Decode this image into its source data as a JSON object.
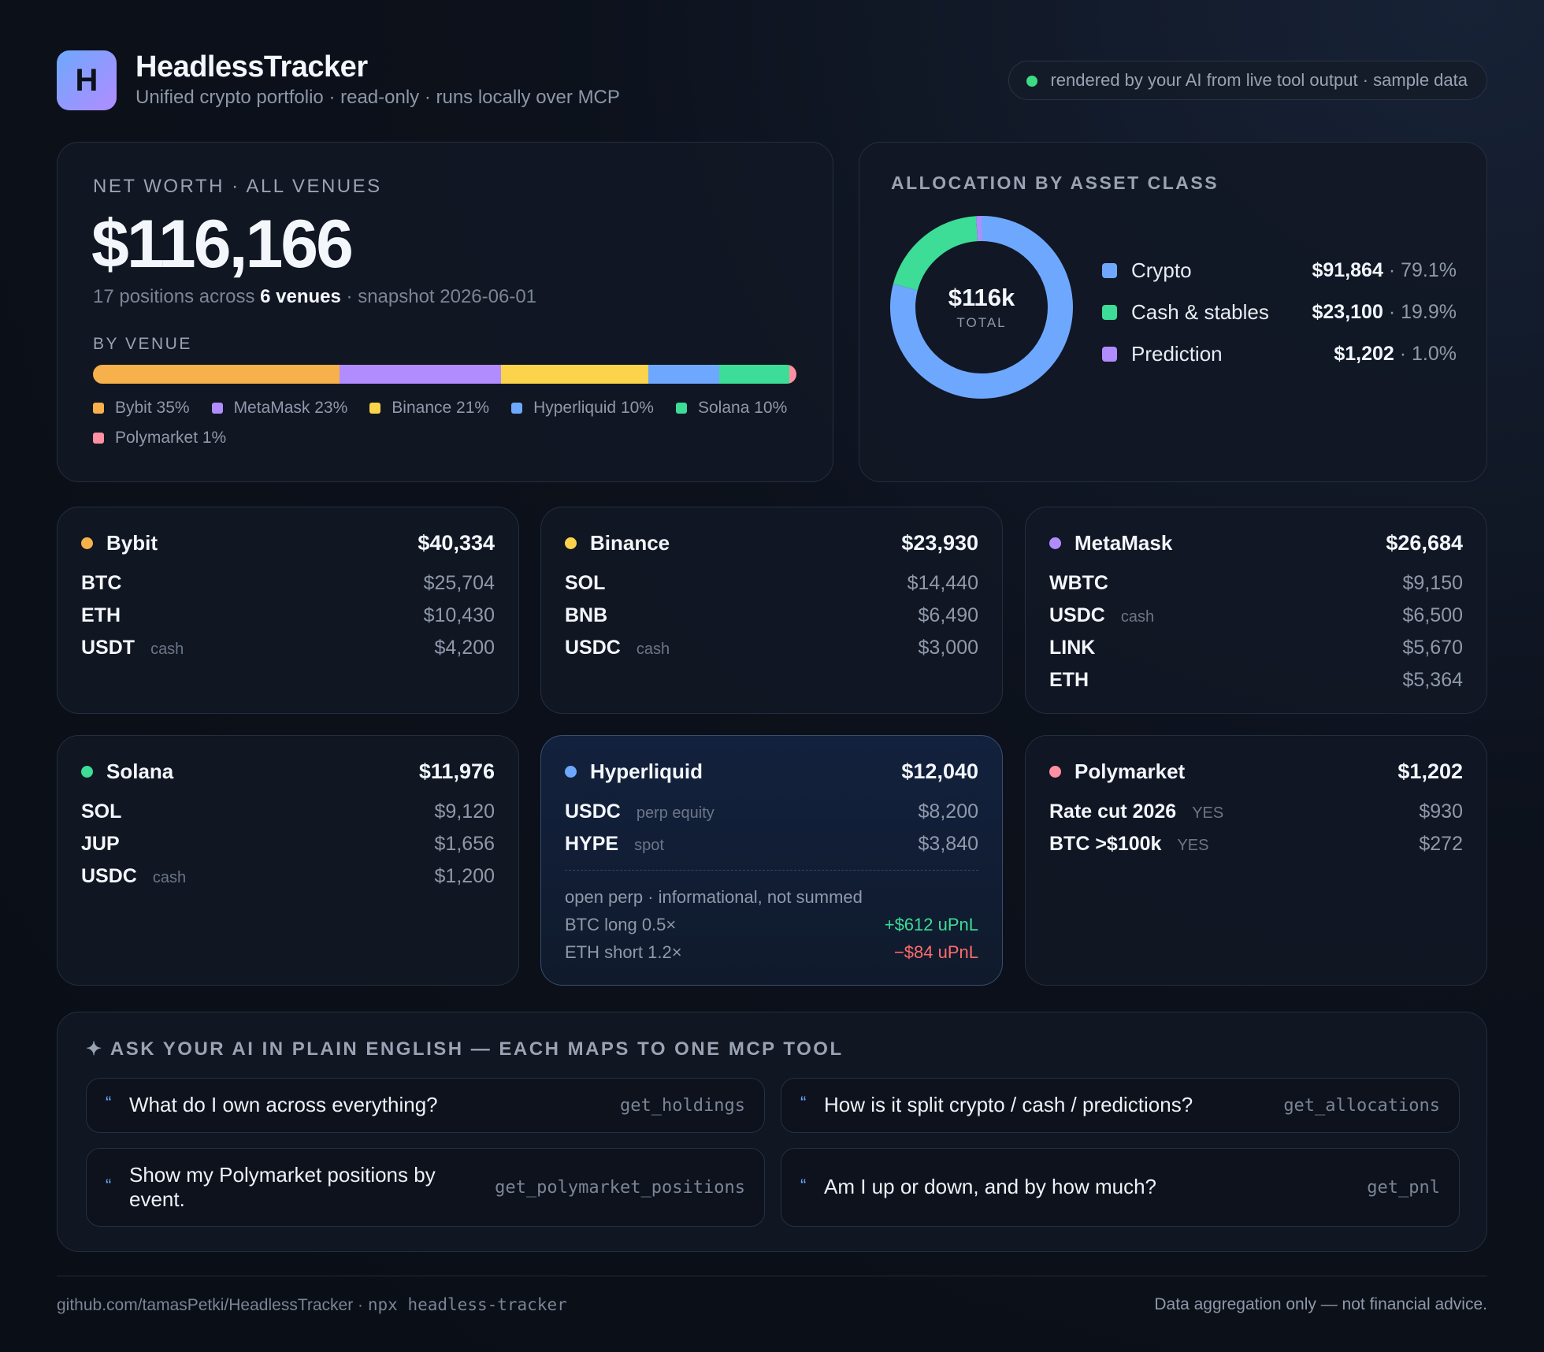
{
  "header": {
    "logo_letter": "H",
    "title": "HeadlessTracker",
    "subtitle": "Unified crypto portfolio · read-only · runs locally over MCP",
    "status_text": "rendered by your AI from live tool output · sample data"
  },
  "net_worth": {
    "label": "NET WORTH · ALL VENUES",
    "value": "$116,166",
    "summary_prefix": "17 positions across",
    "summary_venues": "6 venues",
    "summary_suffix": "· snapshot 2026-06-01",
    "by_venue_label": "BY VENUE",
    "venues": [
      {
        "name": "Bybit",
        "pct": 35,
        "label": "Bybit 35%",
        "color": "#f6b04c"
      },
      {
        "name": "MetaMask",
        "pct": 23,
        "label": "MetaMask 23%",
        "color": "#b18cff"
      },
      {
        "name": "Binance",
        "pct": 21,
        "label": "Binance 21%",
        "color": "#fbd44b"
      },
      {
        "name": "Hyperliquid",
        "pct": 10,
        "label": "Hyperliquid 10%",
        "color": "#6ea8fe"
      },
      {
        "name": "Solana",
        "pct": 10,
        "label": "Solana 10%",
        "color": "#3ddc97"
      },
      {
        "name": "Polymarket",
        "pct": 1,
        "label": "Polymarket 1%",
        "color": "#ff8fa3"
      }
    ]
  },
  "allocation": {
    "label": "ALLOCATION BY ASSET CLASS",
    "center_value": "$116k",
    "center_label": "TOTAL",
    "classes": [
      {
        "name": "Crypto",
        "amount": "$91,864",
        "pct_label": "· 79.1%",
        "pct": 79.1,
        "color": "#6ea8fe"
      },
      {
        "name": "Cash & stables",
        "amount": "$23,100",
        "pct_label": "· 19.9%",
        "pct": 19.9,
        "color": "#3ddc97"
      },
      {
        "name": "Prediction",
        "amount": "$1,202",
        "pct_label": "· 1.0%",
        "pct": 1.0,
        "color": "#b18cff"
      }
    ]
  },
  "venue_cards": {
    "bybit": {
      "name": "Bybit",
      "total": "$40,334",
      "color": "#f6b04c",
      "rows": [
        {
          "sym": "BTC",
          "tag": "",
          "val": "$25,704"
        },
        {
          "sym": "ETH",
          "tag": "",
          "val": "$10,430"
        },
        {
          "sym": "USDT",
          "tag": "cash",
          "val": "$4,200"
        }
      ]
    },
    "binance": {
      "name": "Binance",
      "total": "$23,930",
      "color": "#fbd44b",
      "rows": [
        {
          "sym": "SOL",
          "tag": "",
          "val": "$14,440"
        },
        {
          "sym": "BNB",
          "tag": "",
          "val": "$6,490"
        },
        {
          "sym": "USDC",
          "tag": "cash",
          "val": "$3,000"
        }
      ]
    },
    "metamask": {
      "name": "MetaMask",
      "total": "$26,684",
      "color": "#b18cff",
      "rows": [
        {
          "sym": "WBTC",
          "tag": "",
          "val": "$9,150"
        },
        {
          "sym": "USDC",
          "tag": "cash",
          "val": "$6,500"
        },
        {
          "sym": "LINK",
          "tag": "",
          "val": "$5,670"
        },
        {
          "sym": "ETH",
          "tag": "",
          "val": "$5,364"
        }
      ]
    },
    "solana": {
      "name": "Solana",
      "total": "$11,976",
      "color": "#3ddc97",
      "rows": [
        {
          "sym": "SOL",
          "tag": "",
          "val": "$9,120"
        },
        {
          "sym": "JUP",
          "tag": "",
          "val": "$1,656"
        },
        {
          "sym": "USDC",
          "tag": "cash",
          "val": "$1,200"
        }
      ]
    },
    "hyperliquid": {
      "name": "Hyperliquid",
      "total": "$12,040",
      "color": "#6ea8fe",
      "rows": [
        {
          "sym": "USDC",
          "tag": "perp equity",
          "val": "$8,200"
        },
        {
          "sym": "HYPE",
          "tag": "spot",
          "val": "$3,840"
        }
      ],
      "perp_note": "open perp · informational, not summed",
      "perps": [
        {
          "label": "BTC long 0.5×",
          "pnl": "+$612 uPnL",
          "color": "#3ddc97"
        },
        {
          "label": "ETH short 1.2×",
          "pnl": "−$84 uPnL",
          "color": "#ff6b6b"
        }
      ]
    },
    "polymarket": {
      "name": "Polymarket",
      "total": "$1,202",
      "color": "#ff8fa3",
      "rows": [
        {
          "sym": "Rate cut 2026",
          "tag": "YES",
          "val": "$930"
        },
        {
          "sym": "BTC >$100k",
          "tag": "YES",
          "val": "$272"
        }
      ]
    }
  },
  "ask": {
    "label": "✦ ASK YOUR AI IN PLAIN ENGLISH — EACH MAPS TO ONE MCP TOOL",
    "quote_mark": "“",
    "prompts": [
      {
        "text": "What do I own across everything?",
        "tool": "get_holdings"
      },
      {
        "text": "How is it split crypto / cash / predictions?",
        "tool": "get_allocations"
      },
      {
        "text": "Show my Polymarket positions by event.",
        "tool": "get_polymarket_positions"
      },
      {
        "text": "Am I up or down, and by how much?",
        "tool": "get_pnl"
      }
    ]
  },
  "footer": {
    "repo": "github.com/tamasPetki/HeadlessTracker ·",
    "command": "npx headless-tracker",
    "disclaimer": "Data aggregation only — not financial advice."
  }
}
